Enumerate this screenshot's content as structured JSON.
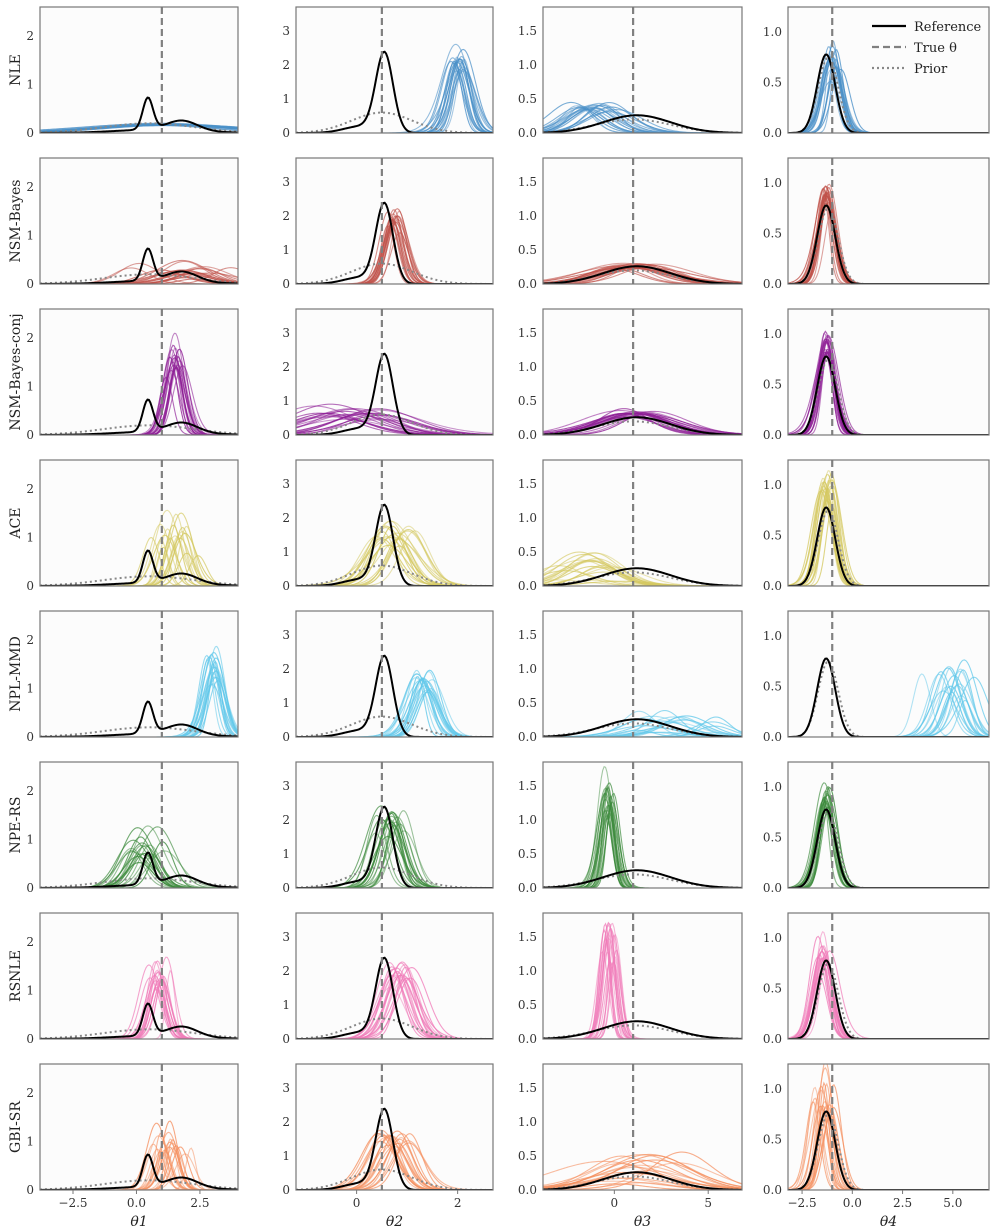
{
  "chart_data": {
    "type": "line",
    "grid": false,
    "methods": [
      {
        "name": "NLE",
        "color": "#4a90c8"
      },
      {
        "name": "NSM-Bayes",
        "color": "#c0524a"
      },
      {
        "name": "NSM-Bayes-conj",
        "color": "#8e1f96"
      },
      {
        "name": "ACE",
        "color": "#d4c860"
      },
      {
        "name": "NPL-MMD",
        "color": "#62c8ea"
      },
      {
        "name": "NPE-RS",
        "color": "#3c8a3c"
      },
      {
        "name": "RSNLE",
        "color": "#f07ab8"
      },
      {
        "name": "GBI-SR",
        "color": "#f59060"
      }
    ],
    "parameters": [
      {
        "label": "θ1",
        "sub": "1",
        "xlim": [
          -3.8,
          4.0
        ],
        "ylim": [
          0,
          2.6
        ],
        "xticks": [
          -2.5,
          0.0,
          2.5
        ],
        "xticklabels": [
          "−2.5",
          "0.0",
          "2.5"
        ],
        "yticks": [
          0,
          1,
          2
        ],
        "yticklabels": [
          "0",
          "1",
          "2"
        ],
        "true_value": 1.0
      },
      {
        "label": "θ2",
        "sub": "2",
        "xlim": [
          -1.2,
          2.7
        ],
        "ylim": [
          0,
          3.7
        ],
        "xticks": [
          0,
          2
        ],
        "xticklabels": [
          "0",
          "2"
        ],
        "yticks": [
          0,
          1,
          2,
          3
        ],
        "yticklabels": [
          "0",
          "1",
          "2",
          "3"
        ],
        "true_value": 0.5
      },
      {
        "label": "θ3",
        "sub": "3",
        "xlim": [
          -3.8,
          6.8
        ],
        "ylim": [
          0,
          1.85
        ],
        "xticks": [
          0,
          5
        ],
        "xticklabels": [
          "0",
          "5"
        ],
        "yticks": [
          0.0,
          0.5,
          1.0,
          1.5
        ],
        "yticklabels": [
          "0.0",
          "0.5",
          "1.0",
          "1.5"
        ],
        "true_value": 1.0
      },
      {
        "label": "θ4",
        "sub": "4",
        "xlim": [
          -3.2,
          6.8
        ],
        "ylim": [
          0,
          1.25
        ],
        "xticks": [
          -2.5,
          0.0,
          2.5,
          5.0
        ],
        "xticklabels": [
          "−2.5",
          "0.0",
          "2.5",
          "5.0"
        ],
        "yticks": [
          0.0,
          0.5,
          1.0
        ],
        "yticklabels": [
          "0.0",
          "0.5",
          "1.0"
        ],
        "true_value": -1.0
      }
    ],
    "reference": [
      [
        [
          0.45,
          0.2,
          0.65
        ],
        [
          1.8,
          0.6,
          0.2
        ],
        [
          0.8,
          1.6,
          0.07
        ]
      ],
      [
        [
          0.55,
          0.17,
          2.3
        ],
        [
          0.1,
          0.35,
          0.2
        ]
      ],
      [
        [
          1.2,
          1.8,
          0.26
        ]
      ],
      [
        [
          -1.3,
          0.45,
          0.78
        ]
      ]
    ],
    "prior": [
      [
        [
          0.5,
          1.8,
          0.2
        ]
      ],
      [
        [
          0.5,
          0.6,
          0.6
        ]
      ],
      [
        [
          1.0,
          2.0,
          0.2
        ]
      ],
      [
        [
          -1.2,
          0.5,
          0.75
        ]
      ]
    ],
    "posterior_profiles": [
      [
        [
          [
            1.0,
            2.5,
            0.15
          ],
          0.4,
          0.05,
          20
        ],
        [
          [
            2.0,
            0.8,
            0.25
          ],
          1.2,
          0.25,
          20
        ],
        [
          [
            1.5,
            0.3,
            1.3
          ],
          0.25,
          0.08,
          20
        ],
        [
          [
            1.6,
            0.35,
            0.95
          ],
          0.7,
          0.15,
          20
        ],
        [
          [
            3.0,
            0.35,
            1.3
          ],
          0.2,
          0.1,
          20
        ],
        [
          [
            0.4,
            0.5,
            0.8
          ],
          0.8,
          0.15,
          20
        ],
        [
          [
            0.9,
            0.3,
            1.1
          ],
          0.25,
          0.08,
          20
        ],
        [
          [
            1.3,
            0.3,
            0.9
          ],
          0.6,
          0.1,
          20
        ]
      ],
      [
        [
          [
            2.0,
            0.2,
            1.9
          ],
          0.12,
          0.05,
          20
        ],
        [
          [
            0.75,
            0.18,
            1.7
          ],
          0.12,
          0.06,
          20
        ],
        [
          [
            -0.2,
            0.7,
            0.55
          ],
          0.6,
          0.1,
          20
        ],
        [
          [
            0.8,
            0.35,
            1.3
          ],
          0.25,
          0.07,
          20
        ],
        [
          [
            1.35,
            0.2,
            1.5
          ],
          0.15,
          0.06,
          20
        ],
        [
          [
            0.7,
            0.22,
            1.8
          ],
          0.2,
          0.06,
          20
        ],
        [
          [
            0.8,
            0.25,
            1.7
          ],
          0.25,
          0.07,
          20
        ],
        [
          [
            0.75,
            0.28,
            1.3
          ],
          0.3,
          0.08,
          20
        ]
      ],
      [
        [
          [
            -1.2,
            1.1,
            0.35
          ],
          0.8,
          0.05,
          20
        ],
        [
          [
            0.8,
            1.8,
            0.23
          ],
          1.0,
          0.05,
          20
        ],
        [
          [
            1.5,
            1.6,
            0.28
          ],
          1.0,
          0.05,
          20
        ],
        [
          [
            -0.8,
            1.3,
            0.32
          ],
          1.5,
          0.3,
          20
        ],
        [
          [
            3.5,
            1.2,
            0.2
          ],
          1.8,
          0.4,
          20
        ],
        [
          [
            -0.3,
            0.35,
            1.2
          ],
          0.2,
          0.1,
          20
        ],
        [
          [
            -0.2,
            0.3,
            1.3
          ],
          0.25,
          0.08,
          20
        ],
        [
          [
            1.3,
            2.0,
            0.3
          ],
          1.5,
          0.3,
          20
        ]
      ],
      [
        [
          [
            -1.0,
            0.4,
            0.65
          ],
          0.25,
          0.08,
          20
        ],
        [
          [
            -1.3,
            0.35,
            0.8
          ],
          0.2,
          0.06,
          20
        ],
        [
          [
            -1.3,
            0.4,
            0.78
          ],
          0.08,
          0.03,
          20
        ],
        [
          [
            -1.25,
            0.4,
            0.85
          ],
          0.25,
          0.06,
          20
        ],
        [
          [
            5.0,
            0.5,
            0.5
          ],
          0.8,
          0.15,
          20
        ],
        [
          [
            -1.3,
            0.4,
            0.78
          ],
          0.12,
          0.04,
          20
        ],
        [
          [
            -1.5,
            0.4,
            0.75
          ],
          0.2,
          0.06,
          20
        ],
        [
          [
            -1.4,
            0.35,
            0.85
          ],
          0.3,
          0.1,
          20
        ]
      ]
    ],
    "legend": {
      "position": "top-right",
      "entries": [
        {
          "label": "Reference",
          "style": "solid"
        },
        {
          "label": "True θ",
          "style": "dashed"
        },
        {
          "label": "Prior",
          "style": "dotted"
        }
      ]
    }
  }
}
